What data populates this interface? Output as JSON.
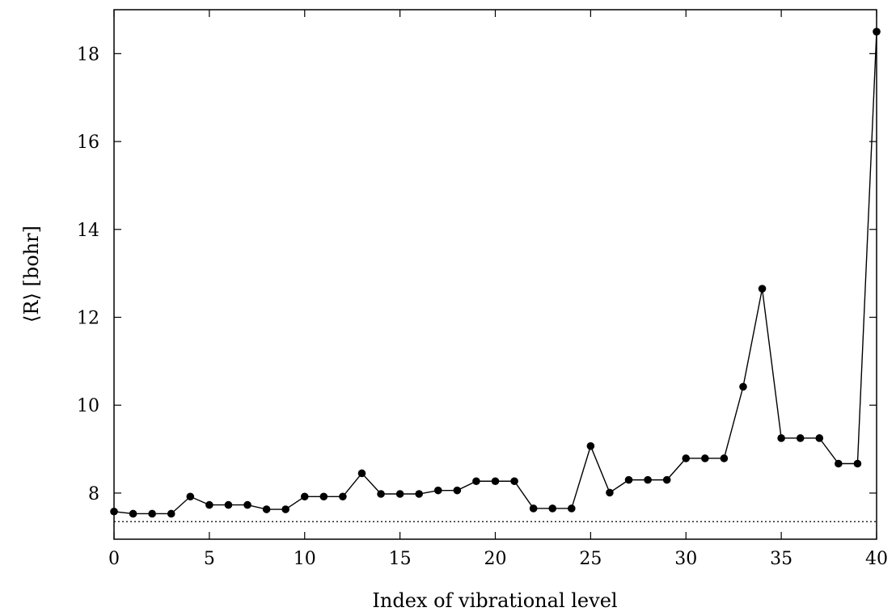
{
  "chart_data": {
    "type": "line",
    "title": "",
    "xlabel": "Index of vibrational level",
    "ylabel": "⟨R⟩ [bohr]",
    "xlim": [
      0,
      40
    ],
    "ylim": [
      6.95,
      19.0
    ],
    "xticks": [
      0,
      5,
      10,
      15,
      20,
      25,
      30,
      35,
      40
    ],
    "yticks": [
      8,
      10,
      12,
      14,
      16,
      18
    ],
    "grid": false,
    "legend": "none",
    "colors": {
      "line": "#000000",
      "marker": "#000000",
      "reference_line": "#000000"
    },
    "reference_line": {
      "y": 7.35,
      "style": "dotted"
    },
    "series": [
      {
        "x": [
          0,
          1,
          2,
          3,
          4,
          5,
          6,
          7,
          8,
          9,
          10,
          11,
          12,
          13,
          14,
          15,
          16,
          17,
          18,
          19,
          20,
          21,
          22,
          23,
          24,
          25,
          26,
          27,
          28,
          29,
          30,
          31,
          32,
          33,
          34,
          35,
          36,
          37,
          38,
          39,
          40
        ],
        "y": [
          7.58,
          7.53,
          7.53,
          7.53,
          7.92,
          7.73,
          7.73,
          7.73,
          7.63,
          7.63,
          7.92,
          7.92,
          7.92,
          8.45,
          7.98,
          7.98,
          7.98,
          8.06,
          8.06,
          8.27,
          8.27,
          8.27,
          7.65,
          7.65,
          7.65,
          9.07,
          8.01,
          8.3,
          8.3,
          8.3,
          8.79,
          8.79,
          8.79,
          10.42,
          12.65,
          9.25,
          9.25,
          9.25,
          8.67,
          8.67,
          18.5
        ],
        "marker": "circle"
      }
    ]
  }
}
